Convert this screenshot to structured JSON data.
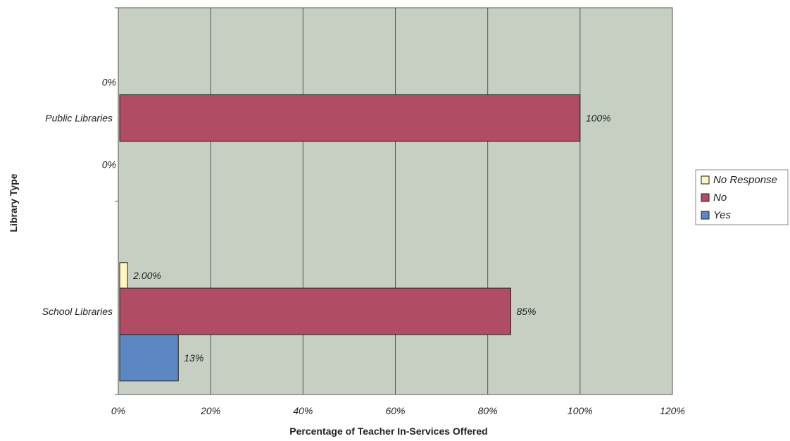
{
  "chart_data": {
    "type": "bar",
    "orientation": "horizontal",
    "title": "",
    "xlabel": "Percentage of Teacher In-Services Offered",
    "ylabel": "Library Type",
    "xlim": [
      0,
      120
    ],
    "x_ticks": [
      "0%",
      "20%",
      "40%",
      "60%",
      "80%",
      "100%",
      "120%"
    ],
    "categories": [
      "Public Libraries",
      "School Libraries"
    ],
    "grid": true,
    "legend_position": "right",
    "series": [
      {
        "name": "No Response",
        "color": "#fdf6bf",
        "values": [
          0,
          2
        ],
        "labels": [
          "0%",
          "2.00%"
        ]
      },
      {
        "name": "No",
        "color": "#b04d65",
        "values": [
          100,
          85
        ],
        "labels": [
          "100%",
          "85%"
        ]
      },
      {
        "name": "Yes",
        "color": "#5d87c2",
        "values": [
          0,
          13
        ],
        "labels": [
          "0%",
          "13%"
        ]
      }
    ]
  }
}
